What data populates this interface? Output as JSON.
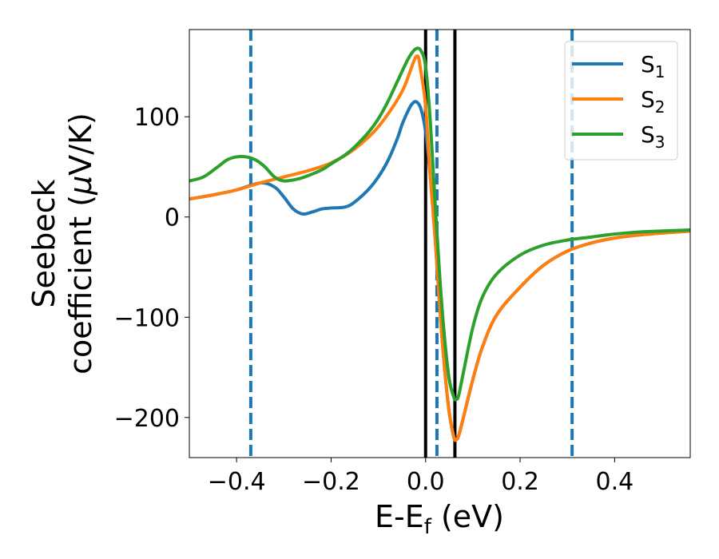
{
  "chart_data": {
    "type": "line",
    "xlabel": {
      "main": "E-E",
      "sub": "f",
      "unit": " (eV)"
    },
    "ylabel": {
      "line1": "Seebeck",
      "line2_prefix": "coefficient  (",
      "mu": "μ",
      "line2_suffix": "V/K)"
    },
    "xlim": [
      -0.5,
      0.56
    ],
    "ylim": [
      -240,
      187
    ],
    "xticks": [
      -0.4,
      -0.2,
      0.0,
      0.2,
      0.4
    ],
    "xtick_labels": [
      "−0.4",
      "−0.2",
      "0.0",
      "0.2",
      "0.4"
    ],
    "yticks": [
      -200,
      -100,
      0,
      100
    ],
    "ytick_labels": [
      "−200",
      "−100",
      "0",
      "100"
    ],
    "grid": false,
    "legend": {
      "position": "top-right",
      "entries": [
        {
          "main": "S",
          "sub": "1"
        },
        {
          "main": "S",
          "sub": "2"
        },
        {
          "main": "S",
          "sub": "3"
        }
      ]
    },
    "colors": {
      "S1": "#1f77b4",
      "S2": "#ff7f0e",
      "S3": "#2ca02c",
      "solid_vlines": "#000000",
      "dashed_vlines": "#1f77b4"
    },
    "vlines_solid": [
      0.0,
      0.062
    ],
    "vlines_dashed": [
      -0.37,
      0.024,
      0.31
    ],
    "series": [
      {
        "name": "S1",
        "x": [
          -0.5,
          -0.45,
          -0.4,
          -0.35,
          -0.32,
          -0.3,
          -0.28,
          -0.26,
          -0.24,
          -0.22,
          -0.2,
          -0.17,
          -0.15,
          -0.12,
          -0.1,
          -0.08,
          -0.06,
          -0.05,
          -0.04,
          -0.03,
          -0.02,
          -0.01,
          0.0,
          0.01,
          0.02,
          0.03,
          0.04,
          0.05,
          0.06,
          0.065,
          0.07,
          0.08,
          0.1,
          0.12,
          0.15,
          0.2,
          0.25,
          0.3,
          0.35,
          0.4,
          0.45,
          0.5,
          0.56
        ],
        "y": [
          18,
          22,
          27,
          34,
          30,
          20,
          8,
          3,
          5,
          8,
          9,
          10,
          15,
          28,
          40,
          56,
          78,
          92,
          103,
          112,
          115,
          108,
          85,
          40,
          -20,
          -90,
          -150,
          -195,
          -220,
          -222,
          -218,
          -200,
          -162,
          -130,
          -98,
          -70,
          -48,
          -34,
          -26,
          -21,
          -18,
          -16,
          -14
        ]
      },
      {
        "name": "S2",
        "x": [
          -0.5,
          -0.45,
          -0.4,
          -0.35,
          -0.3,
          -0.25,
          -0.2,
          -0.15,
          -0.1,
          -0.05,
          -0.02,
          -0.01,
          0.0,
          0.01,
          0.02,
          0.03,
          0.04,
          0.05,
          0.06,
          0.065,
          0.07,
          0.08,
          0.1,
          0.12,
          0.15,
          0.2,
          0.25,
          0.3,
          0.35,
          0.4,
          0.45,
          0.5,
          0.56
        ],
        "y": [
          18,
          22,
          27,
          34,
          40,
          46,
          54,
          68,
          90,
          125,
          160,
          145,
          110,
          40,
          -20,
          -90,
          -150,
          -195,
          -220,
          -222,
          -218,
          -200,
          -162,
          -130,
          -98,
          -70,
          -48,
          -34,
          -26,
          -21,
          -18,
          -16,
          -14
        ]
      },
      {
        "name": "S3",
        "x": [
          -0.5,
          -0.47,
          -0.44,
          -0.42,
          -0.4,
          -0.38,
          -0.36,
          -0.34,
          -0.32,
          -0.3,
          -0.27,
          -0.25,
          -0.22,
          -0.2,
          -0.17,
          -0.15,
          -0.12,
          -0.1,
          -0.08,
          -0.06,
          -0.04,
          -0.03,
          -0.02,
          -0.01,
          0.0,
          0.01,
          0.02,
          0.03,
          0.04,
          0.05,
          0.06,
          0.065,
          0.07,
          0.08,
          0.1,
          0.12,
          0.15,
          0.2,
          0.25,
          0.3,
          0.35,
          0.4,
          0.45,
          0.5,
          0.56
        ],
        "y": [
          36,
          40,
          50,
          57,
          60,
          60,
          57,
          50,
          40,
          36,
          38,
          41,
          47,
          53,
          62,
          70,
          85,
          98,
          115,
          135,
          155,
          163,
          168,
          166,
          150,
          95,
          15,
          -60,
          -120,
          -162,
          -180,
          -182,
          -178,
          -155,
          -110,
          -80,
          -57,
          -38,
          -28,
          -23,
          -20,
          -17,
          -15,
          -14,
          -13
        ]
      }
    ]
  }
}
